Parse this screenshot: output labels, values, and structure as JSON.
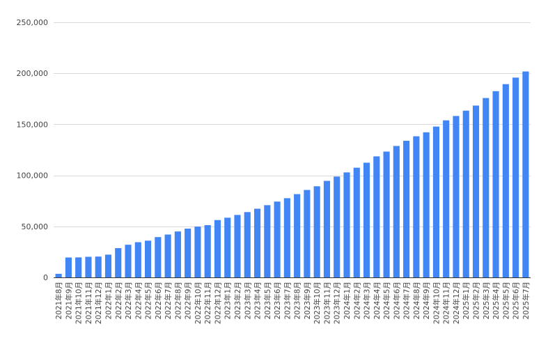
{
  "chart_data": {
    "type": "bar",
    "title": "",
    "xlabel": "",
    "ylabel": "",
    "ylim": [
      0,
      250000
    ],
    "y_ticks": [
      0,
      50000,
      100000,
      150000,
      200000,
      250000
    ],
    "y_tick_labels": [
      "0",
      "50,000",
      "100,000",
      "150,000",
      "200,000",
      "250,000"
    ],
    "grid": true,
    "legend": "none",
    "bar_color": "#4285f4",
    "categories": [
      "2021年8月",
      "2021年9月",
      "2021年10月",
      "2021年11月",
      "2021年12月",
      "2022年1月",
      "2022年2月",
      "2022年3月",
      "2022年4月",
      "2022年5月",
      "2022年6月",
      "2022年7月",
      "2022年8月",
      "2022年9月",
      "2022年10月",
      "2022年11月",
      "2022年12月",
      "2023年1月",
      "2023年2月",
      "2023年3月",
      "2023年4月",
      "2023年5月",
      "2023年6月",
      "2023年7月",
      "2023年8月",
      "2023年9月",
      "2023年10月",
      "2023年11月",
      "2023年12月",
      "2024年1月",
      "2024年2月",
      "2024年3月",
      "2024年4月",
      "2024年5月",
      "2024年6月",
      "2024年7月",
      "2024年8月",
      "2024年9月",
      "2024年10月",
      "2024年11月",
      "2024年12月",
      "2025年1月",
      "2025年2月",
      "2025年3月",
      "2025年4月",
      "2025年5月",
      "2025年6月",
      "2025年7月"
    ],
    "values": [
      3500,
      19500,
      19600,
      20200,
      20400,
      22300,
      28700,
      32000,
      34500,
      36000,
      39500,
      42000,
      45000,
      47800,
      49800,
      51200,
      56200,
      58500,
      61200,
      64000,
      67300,
      70800,
      74300,
      77600,
      81600,
      85700,
      89300,
      94600,
      98800,
      102900,
      107500,
      112400,
      118600,
      123300,
      128800,
      133900,
      138300,
      142200,
      147800,
      153900,
      158200,
      163400,
      168400,
      175800,
      182500,
      189400,
      195800,
      201800
    ]
  }
}
